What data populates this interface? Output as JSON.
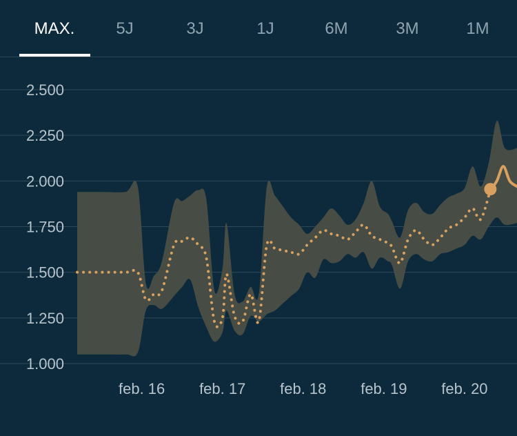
{
  "tabs": [
    {
      "label": "MAX.",
      "active": true
    },
    {
      "label": "5J",
      "active": false
    },
    {
      "label": "3J",
      "active": false
    },
    {
      "label": "1J",
      "active": false
    },
    {
      "label": "6M",
      "active": false
    },
    {
      "label": "3M",
      "active": false
    },
    {
      "label": "1M",
      "active": false
    }
  ],
  "colors": {
    "background": "#0d2a3c",
    "band": "#4b4e44",
    "line": "#d9a15f",
    "active_tab": "#ffffff"
  },
  "chart_data": {
    "type": "area",
    "title": "",
    "xlabel": "",
    "ylabel": "",
    "ylim": [
      1000,
      2500
    ],
    "yticks": [
      1000,
      1250,
      1500,
      1750,
      2000,
      2250,
      2500
    ],
    "ytick_labels": [
      "1.000",
      "1.250",
      "1.500",
      "1.750",
      "2.000",
      "2.250",
      "2.500"
    ],
    "xlim": [
      15.2,
      20.65
    ],
    "xticks": [
      16,
      17,
      18,
      19,
      20
    ],
    "xtick_labels": [
      "feb. 16",
      "feb. 17",
      "feb. 18",
      "feb. 19",
      "feb. 20"
    ],
    "grid": true,
    "series": [
      {
        "style": "dotted",
        "x": [
          15.2,
          15.5,
          15.8,
          15.95,
          16.05,
          16.15,
          16.25,
          16.4,
          16.5,
          16.6,
          16.7,
          16.8,
          16.9,
          17.0,
          17.05,
          17.15,
          17.25,
          17.35,
          17.45,
          17.55,
          17.65,
          17.75,
          17.85,
          17.95,
          18.05,
          18.15,
          18.25,
          18.35,
          18.45,
          18.55,
          18.65,
          18.75,
          18.85,
          18.95,
          19.05,
          19.1,
          19.2,
          19.3,
          19.4,
          19.5,
          19.6,
          19.7,
          19.8,
          19.9,
          20.0,
          20.1,
          20.2,
          20.32
        ],
        "y": [
          1500,
          1500,
          1500,
          1500,
          1350,
          1380,
          1400,
          1650,
          1670,
          1690,
          1650,
          1580,
          1230,
          1250,
          1490,
          1260,
          1230,
          1380,
          1230,
          1650,
          1630,
          1620,
          1610,
          1600,
          1650,
          1690,
          1730,
          1710,
          1700,
          1680,
          1720,
          1760,
          1700,
          1680,
          1660,
          1640,
          1550,
          1680,
          1730,
          1680,
          1650,
          1690,
          1740,
          1760,
          1800,
          1850,
          1790,
          1950
        ]
      },
      {
        "style": "solid",
        "x": [
          20.32,
          20.4,
          20.48,
          20.56,
          20.65
        ],
        "y": [
          1950,
          2000,
          2080,
          2000,
          1970
        ]
      }
    ],
    "band": {
      "x": [
        15.2,
        15.5,
        15.8,
        15.95,
        16.05,
        16.15,
        16.25,
        16.4,
        16.5,
        16.6,
        16.7,
        16.8,
        16.9,
        17.0,
        17.05,
        17.15,
        17.25,
        17.35,
        17.45,
        17.55,
        17.65,
        17.75,
        17.85,
        17.95,
        18.05,
        18.15,
        18.25,
        18.35,
        18.45,
        18.55,
        18.65,
        18.75,
        18.85,
        18.95,
        19.05,
        19.1,
        19.2,
        19.3,
        19.4,
        19.5,
        19.6,
        19.7,
        19.8,
        19.9,
        20.0,
        20.1,
        20.2,
        20.3,
        20.4,
        20.5,
        20.65
      ],
      "upper": [
        1940,
        1940,
        1940,
        1970,
        1440,
        1480,
        1560,
        1880,
        1890,
        1920,
        1950,
        1900,
        1400,
        1520,
        1770,
        1380,
        1340,
        1420,
        1380,
        1970,
        1920,
        1860,
        1800,
        1760,
        1710,
        1750,
        1800,
        1850,
        1810,
        1760,
        1790,
        1880,
        2000,
        1860,
        1820,
        1780,
        1690,
        1840,
        1880,
        1830,
        1820,
        1870,
        1910,
        1930,
        1960,
        2080,
        1970,
        2100,
        2330,
        2180,
        2180
      ],
      "lower": [
        1050,
        1050,
        1050,
        1060,
        1290,
        1320,
        1300,
        1370,
        1420,
        1460,
        1310,
        1200,
        1120,
        1170,
        1290,
        1180,
        1160,
        1260,
        1230,
        1270,
        1290,
        1330,
        1370,
        1410,
        1500,
        1470,
        1570,
        1550,
        1560,
        1600,
        1580,
        1610,
        1520,
        1580,
        1560,
        1540,
        1410,
        1560,
        1600,
        1570,
        1560,
        1600,
        1610,
        1630,
        1650,
        1700,
        1680,
        1750,
        1800,
        1760,
        1770
      ]
    },
    "marker": {
      "x": 20.32,
      "y": 1955
    }
  }
}
